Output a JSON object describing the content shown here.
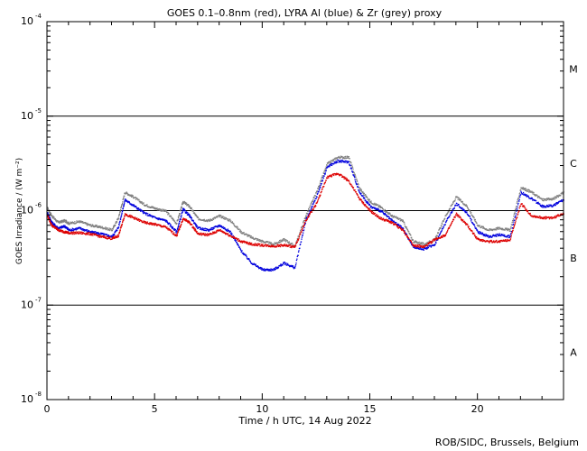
{
  "chart_data": {
    "type": "scatter",
    "title": "GOES 0.1–0.8nm (red), LYRA Al (blue) & Zr (grey) proxy",
    "xlabel": "Time / h UTC, 14 Aug 2022",
    "ylabel": "GOES Irradiance / (W m⁻²)",
    "credit": "ROB/SIDC, Brussels, Belgium",
    "xlim": [
      0,
      24
    ],
    "ylim_log10": [
      -8,
      -4
    ],
    "x_ticks": [
      {
        "value": 0,
        "label": "0"
      },
      {
        "value": 5,
        "label": "5"
      },
      {
        "value": 10,
        "label": "10"
      },
      {
        "value": 15,
        "label": "15"
      },
      {
        "value": 20,
        "label": "20"
      }
    ],
    "y_ticks": [
      {
        "exp": -4,
        "base": "10",
        "sup": "-4"
      },
      {
        "exp": -5,
        "base": "10",
        "sup": "-5"
      },
      {
        "exp": -6,
        "base": "10",
        "sup": "-6"
      },
      {
        "exp": -7,
        "base": "10",
        "sup": "-7"
      },
      {
        "exp": -8,
        "base": "10",
        "sup": "-8"
      }
    ],
    "flare_class_lines": [
      -5,
      -6,
      -7
    ],
    "flare_classes": [
      {
        "label": "M",
        "center_exp": -4.5
      },
      {
        "label": "C",
        "center_exp": -5.5
      },
      {
        "label": "B",
        "center_exp": -6.5
      },
      {
        "label": "A",
        "center_exp": -7.5
      }
    ],
    "series": [
      {
        "name": "Zr (grey)",
        "color": "#808080",
        "x": [
          0,
          0.2,
          0.5,
          0.8,
          1.0,
          1.5,
          2.0,
          2.5,
          3.0,
          3.3,
          3.6,
          4.0,
          4.5,
          5.0,
          5.5,
          6.0,
          6.3,
          6.6,
          7.0,
          7.5,
          8.0,
          8.5,
          9.0,
          9.5,
          10.0,
          10.5,
          11.0,
          11.5,
          12.0,
          12.5,
          13.0,
          13.5,
          14.0,
          14.5,
          15.0,
          15.5,
          16.0,
          16.5,
          17.0,
          17.5,
          18.0,
          18.5,
          19.0,
          19.5,
          20.0,
          20.5,
          21.0,
          21.5,
          22.0,
          22.5,
          23.0,
          23.5,
          24.0
        ],
        "y": [
          -5.97,
          -6.05,
          -6.12,
          -6.1,
          -6.13,
          -6.11,
          -6.15,
          -6.17,
          -6.2,
          -6.07,
          -5.8,
          -5.85,
          -5.93,
          -5.97,
          -6.0,
          -6.13,
          -5.9,
          -5.95,
          -6.08,
          -6.1,
          -6.05,
          -6.1,
          -6.22,
          -6.28,
          -6.32,
          -6.35,
          -6.3,
          -6.37,
          -6.05,
          -5.8,
          -5.5,
          -5.43,
          -5.43,
          -5.76,
          -5.9,
          -5.96,
          -6.05,
          -6.1,
          -6.32,
          -6.35,
          -6.3,
          -6.05,
          -5.85,
          -5.95,
          -6.15,
          -6.2,
          -6.18,
          -6.2,
          -5.75,
          -5.8,
          -5.88,
          -5.87,
          -5.8
        ]
      },
      {
        "name": "LYRA Al (blue)",
        "color": "#0000dd",
        "x": [
          0,
          0.2,
          0.5,
          0.8,
          1.0,
          1.5,
          2.0,
          2.5,
          3.0,
          3.3,
          3.6,
          4.0,
          4.5,
          5.0,
          5.5,
          6.0,
          6.3,
          6.6,
          7.0,
          7.5,
          8.0,
          8.5,
          9.0,
          9.5,
          10.0,
          10.5,
          11.0,
          11.5,
          12.0,
          12.5,
          13.0,
          13.5,
          14.0,
          14.5,
          15.0,
          15.5,
          16.0,
          16.5,
          17.0,
          17.5,
          18.0,
          18.5,
          19.0,
          19.5,
          20.0,
          20.5,
          21.0,
          21.5,
          22.0,
          22.5,
          23.0,
          23.5,
          24.0
        ],
        "y": [
          -6.02,
          -6.12,
          -6.18,
          -6.16,
          -6.2,
          -6.18,
          -6.22,
          -6.24,
          -6.27,
          -6.17,
          -5.88,
          -5.94,
          -6.02,
          -6.07,
          -6.1,
          -6.22,
          -5.98,
          -6.05,
          -6.18,
          -6.2,
          -6.15,
          -6.22,
          -6.42,
          -6.55,
          -6.62,
          -6.62,
          -6.55,
          -6.6,
          -6.1,
          -5.85,
          -5.53,
          -5.47,
          -5.48,
          -5.8,
          -5.95,
          -6.0,
          -6.1,
          -6.18,
          -6.38,
          -6.4,
          -6.35,
          -6.12,
          -5.92,
          -6.02,
          -6.22,
          -6.27,
          -6.25,
          -6.27,
          -5.8,
          -5.87,
          -5.95,
          -5.94,
          -5.88
        ]
      },
      {
        "name": "GOES 0.1–0.8nm (red)",
        "color": "#dd0000",
        "x": [
          0,
          0.2,
          0.5,
          0.8,
          1.0,
          1.5,
          2.0,
          2.5,
          3.0,
          3.3,
          3.6,
          4.0,
          4.5,
          5.0,
          5.5,
          6.0,
          6.3,
          6.6,
          7.0,
          7.5,
          8.0,
          8.5,
          9.0,
          9.5,
          10.0,
          10.5,
          11.0,
          11.5,
          12.0,
          12.5,
          13.0,
          13.5,
          14.0,
          14.5,
          15.0,
          15.5,
          16.0,
          16.5,
          17.0,
          17.5,
          18.0,
          18.5,
          19.0,
          19.5,
          20.0,
          20.5,
          21.0,
          21.5,
          22.0,
          22.5,
          23.0,
          23.5,
          24.0
        ],
        "y": [
          -6.05,
          -6.15,
          -6.2,
          -6.22,
          -6.23,
          -6.23,
          -6.24,
          -6.27,
          -6.29,
          -6.26,
          -6.03,
          -6.07,
          -6.12,
          -6.14,
          -6.17,
          -6.26,
          -6.08,
          -6.12,
          -6.24,
          -6.25,
          -6.2,
          -6.26,
          -6.32,
          -6.35,
          -6.36,
          -6.37,
          -6.36,
          -6.38,
          -6.1,
          -5.92,
          -5.64,
          -5.6,
          -5.68,
          -5.87,
          -6.0,
          -6.08,
          -6.12,
          -6.2,
          -6.36,
          -6.38,
          -6.3,
          -6.25,
          -6.03,
          -6.15,
          -6.3,
          -6.32,
          -6.32,
          -6.3,
          -5.92,
          -6.05,
          -6.07,
          -6.07,
          -6.02
        ]
      }
    ]
  }
}
